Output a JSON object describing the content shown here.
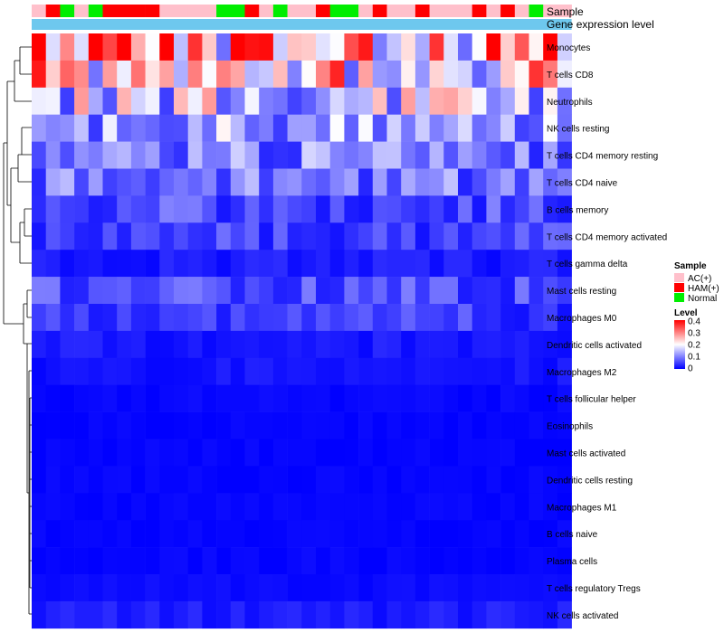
{
  "chart_data": {
    "type": "heatmap",
    "annotation_rows": [
      "Sample",
      "Gene expression level"
    ],
    "sample_groups": [
      "AC(+)",
      "HAM(+)",
      "Normal",
      "AC(+)",
      "Normal",
      "HAM(+)",
      "HAM(+)",
      "HAM(+)",
      "HAM(+)",
      "AC(+)",
      "AC(+)",
      "AC(+)",
      "AC(+)",
      "Normal",
      "Normal",
      "HAM(+)",
      "AC(+)",
      "Normal",
      "AC(+)",
      "AC(+)",
      "HAM(+)",
      "Normal",
      "Normal",
      "AC(+)",
      "HAM(+)",
      "AC(+)",
      "AC(+)",
      "HAM(+)",
      "AC(+)",
      "AC(+)",
      "AC(+)",
      "HAM(+)",
      "AC(+)",
      "HAM(+)",
      "AC(+)",
      "Normal",
      "AC(+)",
      "AC(+)"
    ],
    "group_colors": {
      "AC(+)": "#FFC0CB",
      "HAM(+)": "#FF0000",
      "Normal": "#00EE00"
    },
    "expression_bar_color": "#6EC8EE",
    "rows": [
      "Monocytes",
      "T cells CD8",
      "Neutrophils",
      "NK cells resting",
      "T cells CD4 memory resting",
      "T cells CD4 naive",
      "B cells memory",
      "T cells CD4 memory activated",
      "T cells gamma delta",
      "Mast cells resting",
      "Macrophages M0",
      "Dendritic cells activated",
      "Macrophages M2",
      "T cells follicular helper",
      "Eosinophils",
      "Mast cells activated",
      "Dendritic cells resting",
      "Macrophages M1",
      "B cells naive",
      "Plasma cells",
      "T cells regulatory  Tregs",
      "NK cells activated"
    ],
    "row_means": [
      0.3,
      0.22,
      0.16,
      0.13,
      0.1,
      0.09,
      0.06,
      0.05,
      0.02,
      0.06,
      0.05,
      0.02,
      0.015,
      0.005,
      0.003,
      0.003,
      0.003,
      0.003,
      0.003,
      0.004,
      0.008,
      0.02
    ],
    "legend": {
      "sample_title": "Sample",
      "level_title": "Level",
      "level_min": 0,
      "level_max": 0.4,
      "level_ticks": [
        "0.4",
        "0.3",
        "0.2",
        "0.1",
        "0"
      ],
      "color_low": "#0000FF",
      "color_mid": "#FFFFFF",
      "color_high": "#FF0000"
    }
  }
}
